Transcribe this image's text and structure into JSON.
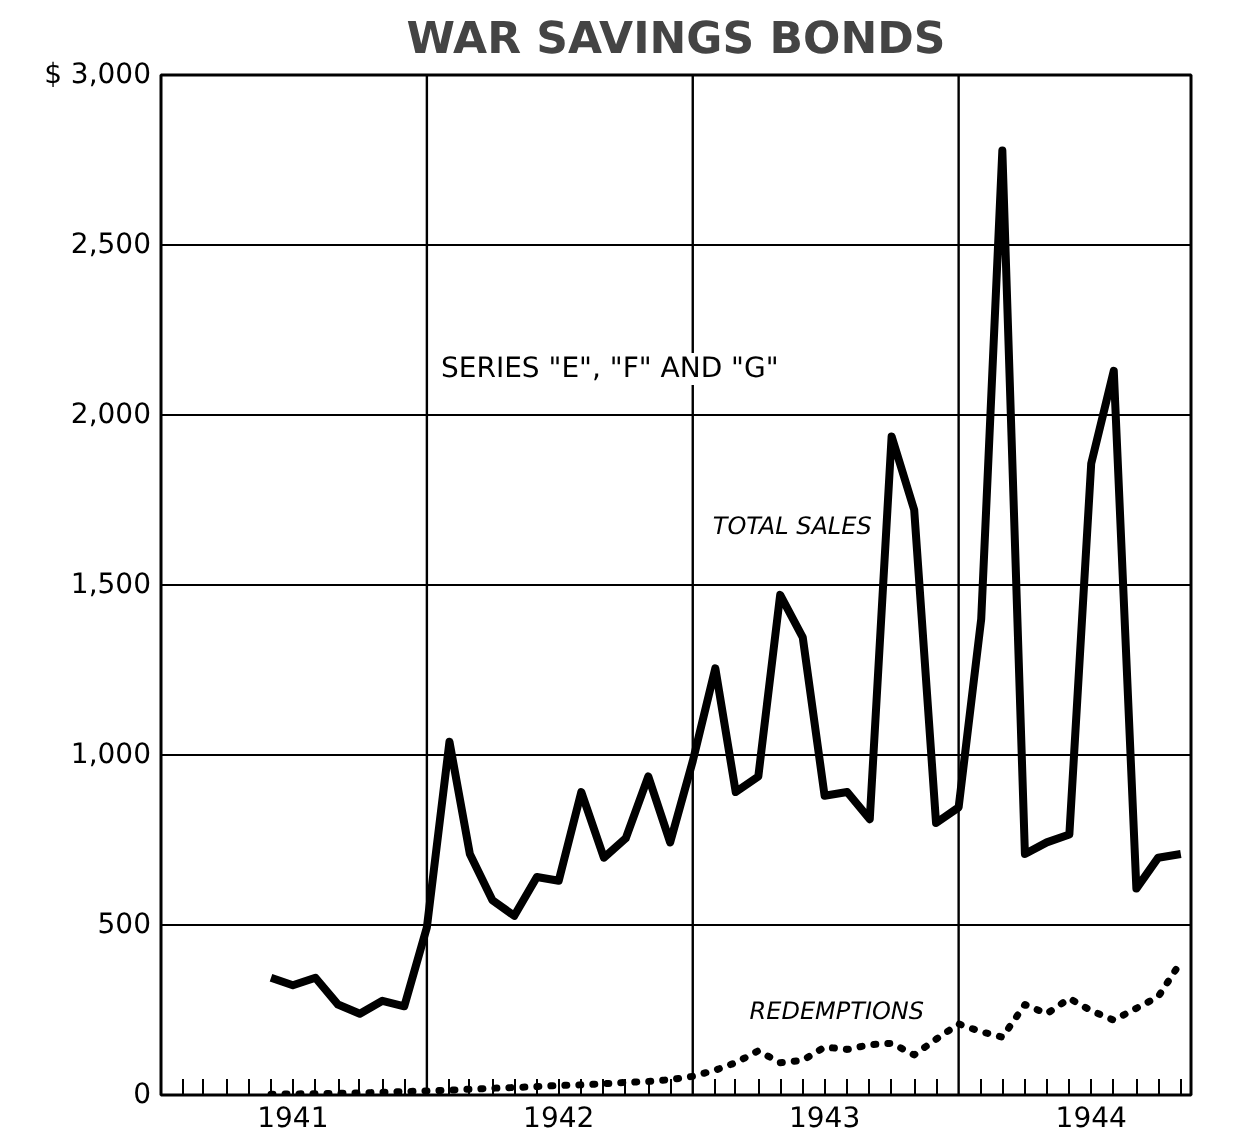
{
  "chart_data": {
    "type": "line",
    "title": "WAR SAVINGS BONDS",
    "subtitle": "SERIES \"E\", \"F\" AND \"G\"",
    "x": [
      "1941-06-01",
      "1941-07-01",
      "1941-08-01",
      "1941-09-01",
      "1941-10-01",
      "1941-11-01",
      "1941-12-01",
      "1942-01-01",
      "1942-02-01",
      "1942-03-01",
      "1942-04-01",
      "1942-05-01",
      "1942-06-01",
      "1942-07-01",
      "1942-08-01",
      "1942-09-01",
      "1942-10-01",
      "1942-11-01",
      "1942-12-01",
      "1943-01-01",
      "1943-02-01",
      "1943-03-01",
      "1943-04-01",
      "1943-05-01",
      "1943-06-01",
      "1943-07-01",
      "1943-08-01",
      "1943-09-01",
      "1943-10-01",
      "1943-11-01",
      "1943-12-01",
      "1944-01-01",
      "1944-02-01",
      "1944-03-01",
      "1944-04-01",
      "1944-05-01",
      "1944-06-01",
      "1944-07-01",
      "1944-08-01",
      "1944-09-01",
      "1944-10-01",
      "1944-11-01"
    ],
    "series": [
      {
        "name": "TOTAL SALES",
        "color": "#000000",
        "line_style": "solid",
        "values": [
          345,
          323,
          345,
          266,
          239,
          277,
          261,
          493,
          1039,
          709,
          573,
          527,
          641,
          630,
          891,
          698,
          755,
          937,
          743,
          982,
          1255,
          891,
          937,
          1471,
          1346,
          880,
          891,
          811,
          1937,
          1721,
          800,
          846,
          1400,
          2778,
          709,
          743,
          766,
          1857,
          2130,
          607,
          698,
          709
        ]
      },
      {
        "name": "REDEMPTIONS",
        "color": "#000000",
        "line_style": "dotted",
        "values": [
          2,
          3,
          4,
          5,
          6,
          8,
          10,
          12,
          14,
          17,
          20,
          22,
          25,
          28,
          30,
          33,
          37,
          40,
          45,
          55,
          73,
          95,
          130,
          95,
          102,
          141,
          134,
          148,
          152,
          118,
          164,
          209,
          186,
          170,
          266,
          239,
          284,
          248,
          220,
          255,
          289,
          391
        ]
      }
    ],
    "xlim": [
      "1941-01-01",
      "1944-11-15"
    ],
    "xticks": [
      {
        "value": "1941-02-01",
        "label": null
      },
      {
        "value": "1941-03-01",
        "label": null
      },
      {
        "value": "1941-04-01",
        "label": null
      },
      {
        "value": "1941-05-01",
        "label": null
      },
      {
        "value": "1941-06-01",
        "label": null
      },
      {
        "value": "1941-07-01",
        "label": "1941"
      },
      {
        "value": "1941-08-01",
        "label": null
      },
      {
        "value": "1941-09-01",
        "label": null
      },
      {
        "value": "1941-10-01",
        "label": null
      },
      {
        "value": "1941-11-01",
        "label": null
      },
      {
        "value": "1941-12-01",
        "label": null
      },
      {
        "value": "1942-02-01",
        "label": null
      },
      {
        "value": "1942-03-01",
        "label": null
      },
      {
        "value": "1942-04-01",
        "label": null
      },
      {
        "value": "1942-05-01",
        "label": null
      },
      {
        "value": "1942-06-01",
        "label": null
      },
      {
        "value": "1942-07-01",
        "label": "1942"
      },
      {
        "value": "1942-08-01",
        "label": null
      },
      {
        "value": "1942-09-01",
        "label": null
      },
      {
        "value": "1942-10-01",
        "label": null
      },
      {
        "value": "1942-11-01",
        "label": null
      },
      {
        "value": "1942-12-01",
        "label": null
      },
      {
        "value": "1943-02-01",
        "label": null
      },
      {
        "value": "1943-03-01",
        "label": null
      },
      {
        "value": "1943-04-01",
        "label": null
      },
      {
        "value": "1943-05-01",
        "label": null
      },
      {
        "value": "1943-06-01",
        "label": null
      },
      {
        "value": "1943-07-01",
        "label": "1943"
      },
      {
        "value": "1943-08-01",
        "label": null
      },
      {
        "value": "1943-09-01",
        "label": null
      },
      {
        "value": "1943-10-01",
        "label": null
      },
      {
        "value": "1943-11-01",
        "label": null
      },
      {
        "value": "1943-12-01",
        "label": null
      },
      {
        "value": "1944-02-01",
        "label": null
      },
      {
        "value": "1944-03-01",
        "label": null
      },
      {
        "value": "1944-04-01",
        "label": null
      },
      {
        "value": "1944-05-01",
        "label": null
      },
      {
        "value": "1944-06-01",
        "label": null
      },
      {
        "value": "1944-07-01",
        "label": "1944"
      },
      {
        "value": "1944-08-01",
        "label": null
      },
      {
        "value": "1944-09-01",
        "label": null
      },
      {
        "value": "1944-10-01",
        "label": null
      },
      {
        "value": "1944-11-01",
        "label": null
      }
    ],
    "ylim": [
      0,
      3000
    ],
    "yticks": [
      0,
      500,
      {
        "value": 1000,
        "label": "1,000"
      },
      {
        "value": 1500,
        "label": "1,500"
      },
      {
        "value": 2000,
        "label": "2,000"
      },
      {
        "value": 2500,
        "label": "2,500"
      },
      {
        "value": 3000,
        "label": "$ 3,000"
      }
    ],
    "ref_lines": [
      {
        "axis": "x",
        "value": "1942-01-01",
        "label": null
      },
      {
        "axis": "x",
        "value": "1943-01-01",
        "label": null
      },
      {
        "axis": "x",
        "value": "1944-01-01",
        "label": null
      }
    ],
    "grid": "y"
  }
}
